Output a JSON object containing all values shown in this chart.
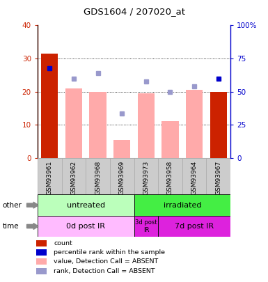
{
  "title": "GDS1604 / 207020_at",
  "samples": [
    "GSM93961",
    "GSM93962",
    "GSM93968",
    "GSM93969",
    "GSM93973",
    "GSM93958",
    "GSM93964",
    "GSM93967"
  ],
  "bar_values": [
    31.5,
    21.0,
    20.0,
    5.5,
    19.5,
    11.0,
    20.5,
    20.0
  ],
  "bar_colors": [
    "#cc2200",
    "#ffaaaa",
    "#ffaaaa",
    "#ffaaaa",
    "#ffaaaa",
    "#ffaaaa",
    "#ffaaaa",
    "#cc2200"
  ],
  "rank_dots": [
    27.0,
    null,
    null,
    13.5,
    23.0,
    null,
    21.5,
    24.0
  ],
  "rank_dot_color_dark": "#0000cc",
  "rank_dot_color_light": "#9999cc",
  "value_dots": [
    null,
    24.0,
    25.5,
    null,
    null,
    20.0,
    null,
    null
  ],
  "ylim_left": [
    0,
    40
  ],
  "ylim_right": [
    0,
    100
  ],
  "yticks_left": [
    0,
    10,
    20,
    30,
    40
  ],
  "yticks_right": [
    0,
    25,
    50,
    75,
    100
  ],
  "ytick_labels_right": [
    "0",
    "25",
    "50",
    "75",
    "100%"
  ],
  "other_label": "other",
  "time_label": "time",
  "group_other": [
    {
      "label": "untreated",
      "span": [
        0,
        4
      ],
      "color": "#bbffbb"
    },
    {
      "label": "irradiated",
      "span": [
        4,
        8
      ],
      "color": "#44ee44"
    }
  ],
  "group_time": [
    {
      "label": "0d post IR",
      "span": [
        0,
        4
      ],
      "color": "#ffbbff"
    },
    {
      "label": "3d post\nIR",
      "span": [
        4,
        5
      ],
      "color": "#dd22dd"
    },
    {
      "label": "7d post IR",
      "span": [
        5,
        8
      ],
      "color": "#dd22dd"
    }
  ],
  "legend_items": [
    {
      "label": "count",
      "color": "#cc2200"
    },
    {
      "label": "percentile rank within the sample",
      "color": "#0000cc"
    },
    {
      "label": "value, Detection Call = ABSENT",
      "color": "#ffaaaa"
    },
    {
      "label": "rank, Detection Call = ABSENT",
      "color": "#9999cc"
    }
  ],
  "axis_left_color": "#cc2200",
  "axis_right_color": "#0000cc",
  "gray_box_color": "#cccccc",
  "gray_box_edge": "#aaaaaa"
}
